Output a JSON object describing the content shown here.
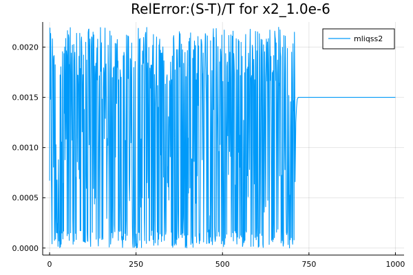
{
  "chart_data": {
    "type": "line",
    "title": "RelError:(S-T)/T for x2_1.0e-6",
    "xlabel": "",
    "ylabel": "",
    "xlim": [
      -20,
      1025
    ],
    "ylim": [
      -7e-05,
      0.00225
    ],
    "x_ticks": [
      0,
      250,
      500,
      750,
      1000
    ],
    "x_tick_labels": [
      "0",
      "250",
      "500",
      "750",
      "1000"
    ],
    "y_ticks": [
      0.0,
      0.0005,
      0.001,
      0.0015,
      0.002
    ],
    "y_tick_labels": [
      "0.0000",
      "0.0005",
      "0.0010",
      "0.0015",
      "0.0020"
    ],
    "grid": true,
    "legend_position": "top-right",
    "series": [
      {
        "name": "mliqss2",
        "color": "#009af9",
        "noisy_region": {
          "x_start": 0,
          "x_end": 710,
          "min": 0.0,
          "max": 0.0022
        },
        "steady_region": {
          "x_start": 712,
          "x_end": 1000,
          "value": 0.0015
        }
      }
    ]
  },
  "colors": {
    "series": "#009af9",
    "background": "#ffffff",
    "axis": "#000000"
  }
}
